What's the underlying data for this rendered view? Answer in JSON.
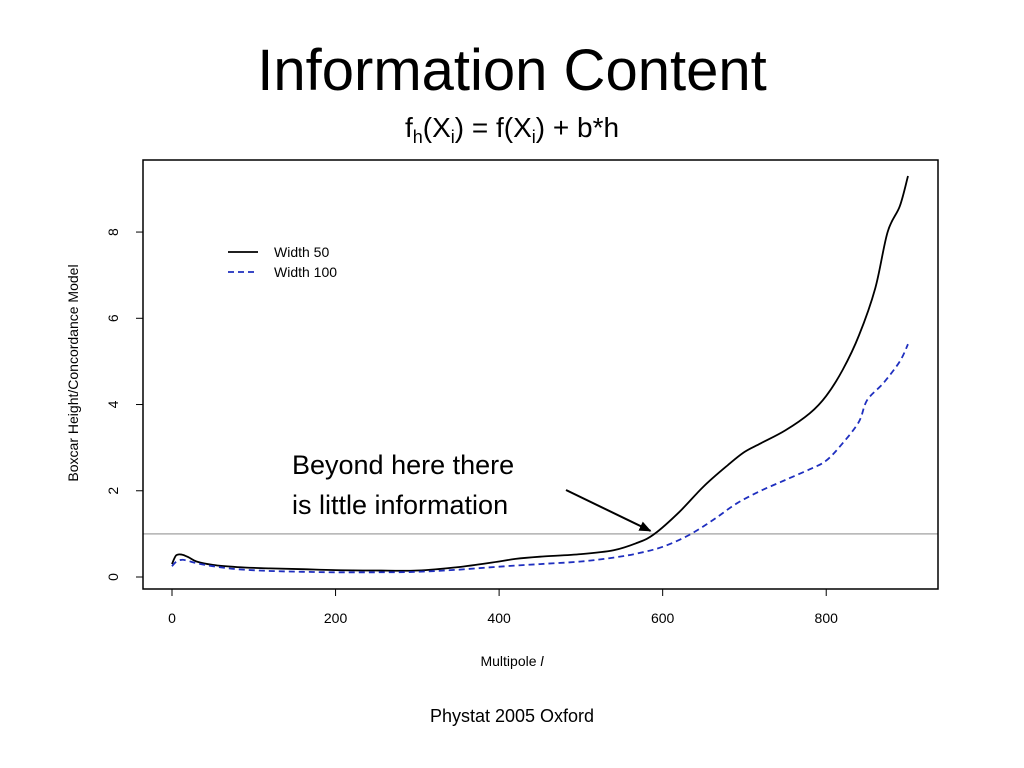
{
  "slide": {
    "title": "Information Content",
    "formula": {
      "f": "f",
      "h_sub": "h",
      "open1": "(X",
      "i_sub1": "i",
      "middle": ") = f(X",
      "i_sub2": "i",
      "tail": ") + b*h"
    },
    "footer": "Phystat 2005 Oxford"
  },
  "chart_data": {
    "type": "line",
    "xlabel": "Multipole",
    "xlabel_symbol": "l",
    "ylabel": "Boxcar Height/Concordance Model",
    "xlim": [
      0,
      900
    ],
    "ylim": [
      0,
      9.3
    ],
    "x_ticks": [
      0,
      200,
      400,
      600,
      800
    ],
    "x_tick_labels": [
      "0",
      "200",
      "400",
      "600",
      "800"
    ],
    "y_ticks": [
      0,
      2,
      4,
      6,
      8
    ],
    "y_tick_labels": [
      "0",
      "2",
      "4",
      "6",
      "8"
    ],
    "grid": false,
    "legend_position": "top-left",
    "reference_line": {
      "y": 1,
      "color": "#b0b0b0"
    },
    "series": [
      {
        "name": "Width 50",
        "color": "#000000",
        "dash": "solid",
        "x": [
          0,
          5,
          12,
          20,
          30,
          50,
          80,
          120,
          160,
          200,
          250,
          300,
          350,
          400,
          420,
          450,
          500,
          540,
          570,
          590,
          620,
          650,
          680,
          700,
          720,
          750,
          780,
          800,
          820,
          840,
          860,
          875,
          890,
          900
        ],
        "y": [
          0.3,
          0.5,
          0.52,
          0.46,
          0.36,
          0.28,
          0.23,
          0.2,
          0.18,
          0.16,
          0.15,
          0.15,
          0.23,
          0.36,
          0.42,
          0.47,
          0.53,
          0.62,
          0.8,
          1.0,
          1.5,
          2.1,
          2.6,
          2.9,
          3.1,
          3.4,
          3.8,
          4.2,
          4.8,
          5.6,
          6.7,
          8.0,
          8.6,
          9.3
        ]
      },
      {
        "name": "Width 100",
        "color": "#1f2fbf",
        "dash": "dashed",
        "x": [
          0,
          5,
          12,
          20,
          30,
          50,
          80,
          120,
          160,
          200,
          250,
          300,
          350,
          400,
          450,
          500,
          540,
          570,
          600,
          630,
          660,
          690,
          720,
          750,
          780,
          800,
          820,
          840,
          850,
          870,
          890,
          900
        ],
        "y": [
          0.25,
          0.35,
          0.4,
          0.37,
          0.32,
          0.25,
          0.18,
          0.14,
          0.12,
          0.11,
          0.11,
          0.12,
          0.17,
          0.24,
          0.3,
          0.36,
          0.45,
          0.55,
          0.7,
          0.95,
          1.3,
          1.7,
          2.0,
          2.25,
          2.5,
          2.7,
          3.1,
          3.6,
          4.1,
          4.5,
          5.0,
          5.4
        ]
      }
    ],
    "annotation": {
      "lines": [
        "Beyond here there",
        "is little information"
      ],
      "arrow_to": {
        "x": 590,
        "y": 1.0
      }
    }
  }
}
